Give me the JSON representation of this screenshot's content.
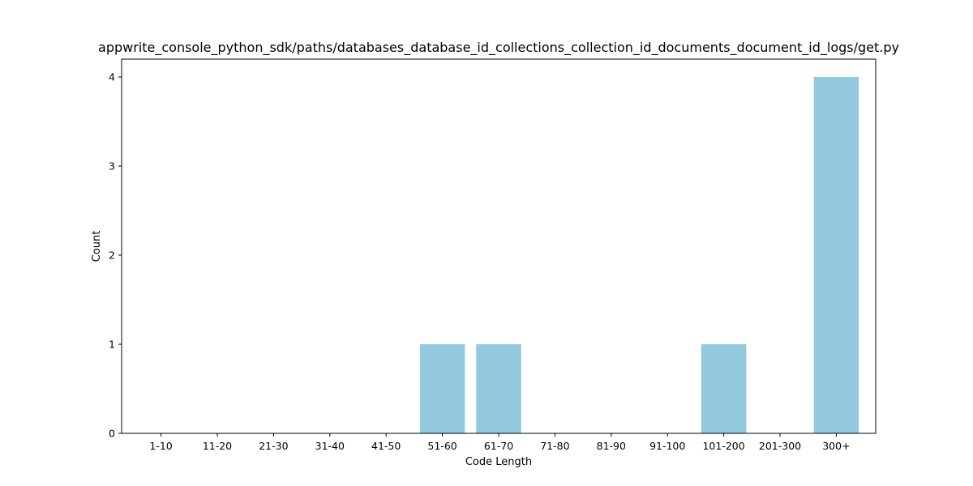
{
  "chart_data": {
    "type": "bar",
    "title": "appwrite_console_python_sdk/paths/databases_database_id_collections_collection_id_documents_document_id_logs/get.py",
    "xlabel": "Code Length",
    "ylabel": "Count",
    "categories": [
      "1-10",
      "11-20",
      "21-30",
      "31-40",
      "41-50",
      "51-60",
      "61-70",
      "71-80",
      "81-90",
      "91-100",
      "101-200",
      "201-300",
      "300+"
    ],
    "values": [
      0,
      0,
      0,
      0,
      0,
      1,
      1,
      0,
      0,
      0,
      1,
      0,
      4
    ],
    "ylim": [
      0,
      4.2
    ],
    "yticks": [
      0,
      1,
      2,
      3,
      4
    ],
    "bar_color": "#92c9de",
    "grid": false,
    "legend": "none"
  }
}
